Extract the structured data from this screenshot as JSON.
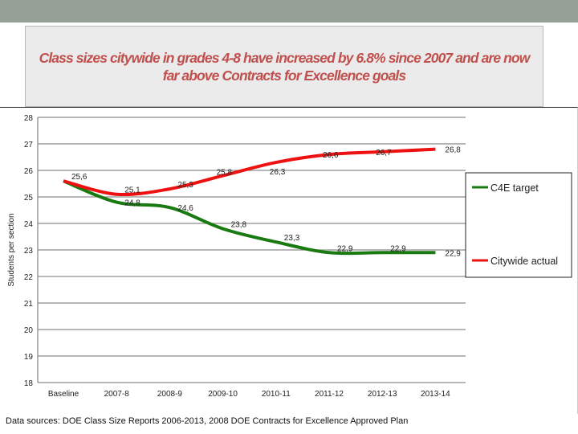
{
  "title": "Class sizes citywide in grades 4-8 have increased by 6.8% since 2007 and are now far above Contracts for Excellence goals",
  "source": "Data sources: DOE Class Size Reports 2006-2013, 2008 DOE Contracts for Excellence Approved Plan",
  "colors": {
    "topbar": "#94a096",
    "title": "#c0504d",
    "c4e": "#1a7a12",
    "citywide": "#ee1111"
  },
  "chart_data": {
    "type": "line",
    "ylabel": "Students per section",
    "xlabel": "",
    "ylim": [
      18,
      28
    ],
    "yticks": [
      "18",
      "19",
      "20",
      "21",
      "22",
      "23",
      "24",
      "25",
      "26",
      "27",
      "28"
    ],
    "grid": true,
    "legend_position": "right",
    "categories": [
      "Baseline",
      "2007-8",
      "2008-9",
      "2009-10",
      "2010-11",
      "2011-12",
      "2012-13",
      "2013-14"
    ],
    "series": [
      {
        "name": "C4E target",
        "color": "#1a7a12",
        "values": [
          25.6,
          24.8,
          24.6,
          23.8,
          23.3,
          22.9,
          22.9,
          22.9
        ],
        "labels": [
          "25,6",
          "24,8",
          "24,6",
          "23,8",
          "23,3",
          "22,9",
          "22,9",
          "22,9"
        ]
      },
      {
        "name": "Citywide actual",
        "color": "#ee1111",
        "values": [
          25.6,
          25.1,
          25.3,
          25.8,
          26.3,
          26.6,
          26.7,
          26.8
        ],
        "labels": [
          "25,6",
          "25,1",
          "25,3",
          "25,8",
          "26,3",
          "26,6",
          "26,7",
          "26,8"
        ]
      }
    ]
  }
}
